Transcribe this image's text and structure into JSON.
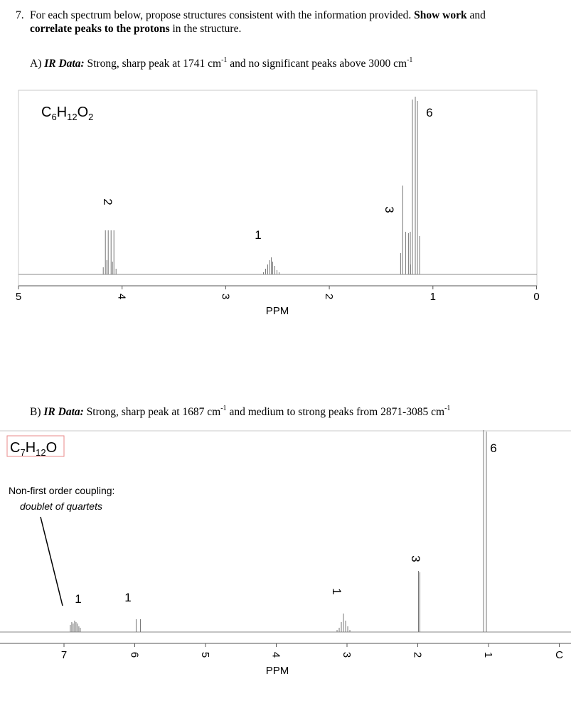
{
  "question": {
    "number": "7.",
    "text_plain_1": "For each spectrum below, propose structures consistent with the information provided.",
    "text_bold_1": "Show work",
    "text_plain_2": "and",
    "text_bold_2": "correlate peaks to the protons",
    "text_plain_3": "in the structure."
  },
  "part_a": {
    "label": "A)",
    "ir_label": "IR Data:",
    "ir_text_1": "Strong, sharp peak at 1741 cm",
    "ir_text_2": "and no significant peaks above 3000 cm",
    "sup": "-1",
    "formula": {
      "c": "C",
      "c_n": "6",
      "h": "H",
      "h_n": "12",
      "o": "O",
      "o_n": "2"
    },
    "axis_label": "PPM",
    "ticks": [
      "5",
      "4",
      "3",
      "2",
      "1",
      "0"
    ],
    "peaks": [
      {
        "ppm": 4.12,
        "integration": "2",
        "multiplicity": "quartet"
      },
      {
        "ppm": 2.56,
        "integration": "1",
        "multiplicity": "septet"
      },
      {
        "ppm": 1.25,
        "integration": "3",
        "multiplicity": "triplet"
      },
      {
        "ppm": 1.17,
        "integration": "6",
        "multiplicity": "doublet"
      }
    ]
  },
  "part_b": {
    "label": "B)",
    "ir_label": "IR Data:",
    "ir_text_1": "Strong, sharp peak at 1687 cm",
    "ir_text_2": "and medium to strong peaks from 2871-3085 cm",
    "sup": "-1",
    "formula": {
      "c": "C",
      "c_n": "7",
      "h": "H",
      "h_n": "12",
      "o": "O"
    },
    "note_title": "Non-first order coupling:",
    "note_detail": "doublet of quartets",
    "axis_label": "PPM",
    "ticks": [
      "7",
      "6",
      "5",
      "4",
      "3",
      "2",
      "1",
      "C"
    ],
    "peaks": [
      {
        "ppm": 6.85,
        "integration": "1",
        "multiplicity": "doublet of quartets"
      },
      {
        "ppm": 5.95,
        "integration": "1",
        "multiplicity": "doublet"
      },
      {
        "ppm": 3.05,
        "integration": "1",
        "multiplicity": "septet"
      },
      {
        "ppm": 1.98,
        "integration": "3",
        "multiplicity": "singlet"
      },
      {
        "ppm": 1.05,
        "integration": "6",
        "multiplicity": "doublet"
      }
    ]
  }
}
